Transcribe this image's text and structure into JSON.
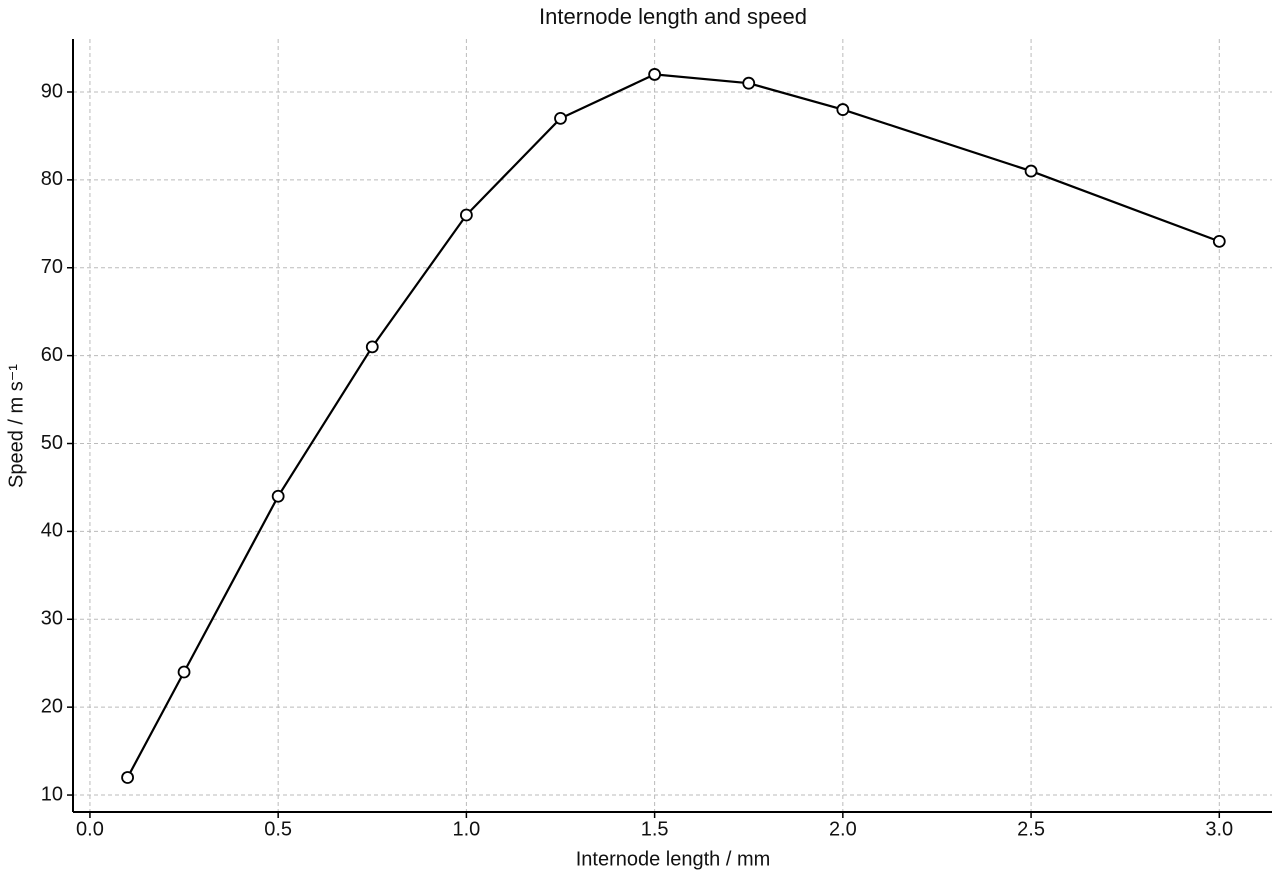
{
  "chart_data": {
    "type": "line",
    "title": "Internode length and speed",
    "x_label": "Internode length / mm",
    "y_label": "Speed / m s⁻¹",
    "x": [
      0.1,
      0.25,
      0.5,
      0.75,
      1.0,
      1.25,
      1.5,
      1.75,
      2.0,
      2.5,
      3.0
    ],
    "values": [
      12,
      24,
      44,
      61,
      76,
      87,
      92,
      91,
      88,
      81,
      73
    ],
    "color": "#000000",
    "xlim": [
      -0.045,
      3.14
    ],
    "xticks": [
      {
        "value": 0,
        "label": "0.0"
      },
      0.5,
      {
        "value": 1,
        "label": "1.0"
      },
      1.5,
      {
        "value": 2,
        "label": "2.0"
      },
      2.5,
      {
        "value": 3,
        "label": "3.0"
      }
    ],
    "ylim": [
      8.07,
      96.03
    ],
    "yticks": [
      10,
      20,
      30,
      40,
      50,
      60,
      70,
      80,
      90
    ],
    "grid": true
  }
}
